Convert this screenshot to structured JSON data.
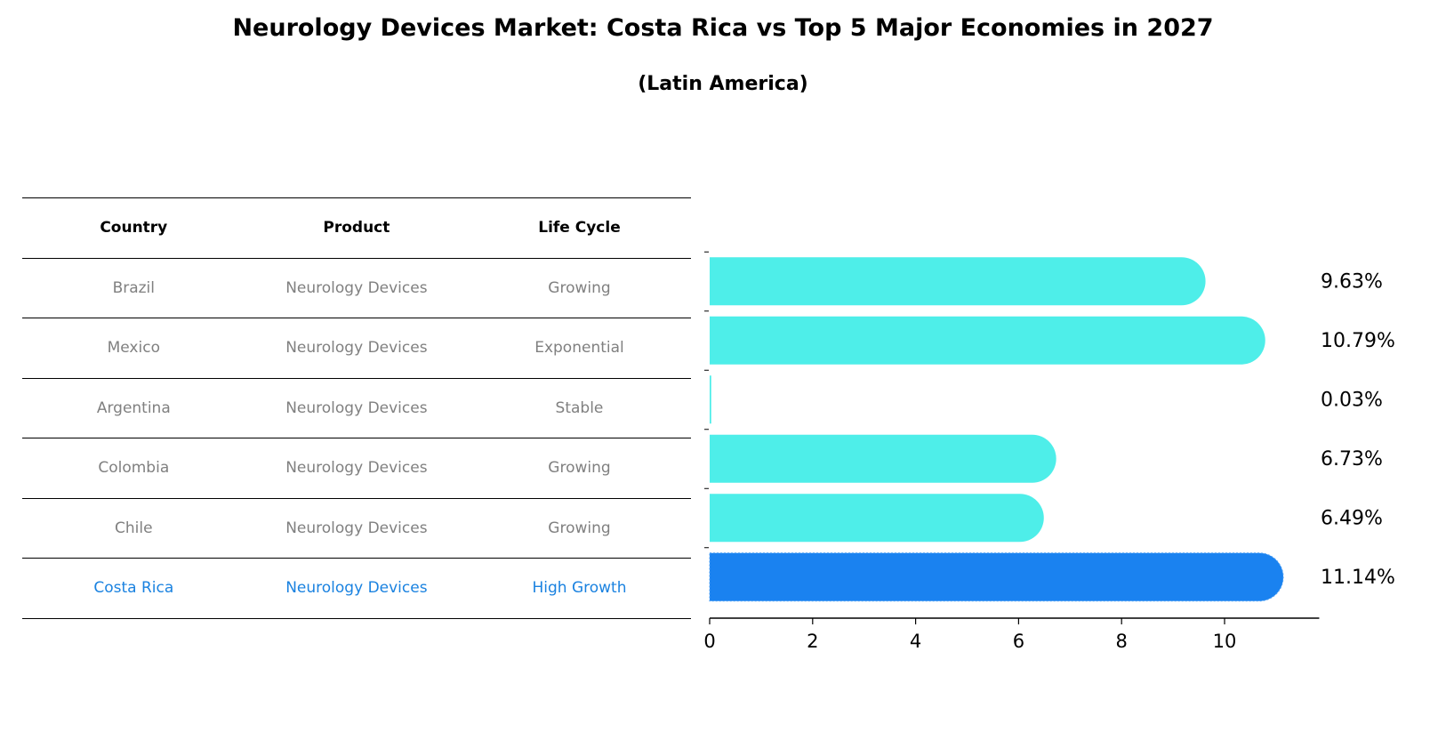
{
  "title": "Neurology Devices Market: Costa Rica vs Top 5 Major Economies in 2027",
  "subtitle": "(Latin America)",
  "table": {
    "headers": [
      "Country",
      "Product",
      "Life Cycle"
    ],
    "rows": [
      [
        "Brazil",
        "Neurology Devices",
        "Growing"
      ],
      [
        "Mexico",
        "Neurology Devices",
        "Exponential"
      ],
      [
        "Argentina",
        "Neurology Devices",
        "Stable"
      ],
      [
        "Colombia",
        "Neurology Devices",
        "Growing"
      ],
      [
        "Chile",
        "Neurology Devices",
        "Growing"
      ],
      [
        "Costa Rica",
        "Neurology Devices",
        "High Growth"
      ]
    ],
    "highlight_row": 5
  },
  "colors": {
    "bar": "#4eeee9",
    "highlight": "#1a82f0",
    "highlight_text": "#1a82e0",
    "muted_text": "#808080"
  },
  "chart_data": {
    "type": "bar",
    "orientation": "horizontal",
    "title": "Neurology Devices Market: Costa Rica vs Top 5 Major Economies in 2027",
    "subtitle": "(Latin America)",
    "categories": [
      "Brazil",
      "Mexico",
      "Argentina",
      "Colombia",
      "Chile",
      "Costa Rica"
    ],
    "values": [
      9.63,
      10.79,
      0.03,
      6.73,
      6.49,
      11.14
    ],
    "data_labels": [
      "9.63%",
      "10.79%",
      "0.03%",
      "6.73%",
      "6.49%",
      "11.14%"
    ],
    "highlight": "Costa Rica",
    "xlabel": "",
    "ylabel": "",
    "xlim": [
      0,
      11.7
    ],
    "xticks": [
      0,
      2,
      4,
      6,
      8,
      10
    ],
    "grid": false,
    "legend": "none"
  }
}
